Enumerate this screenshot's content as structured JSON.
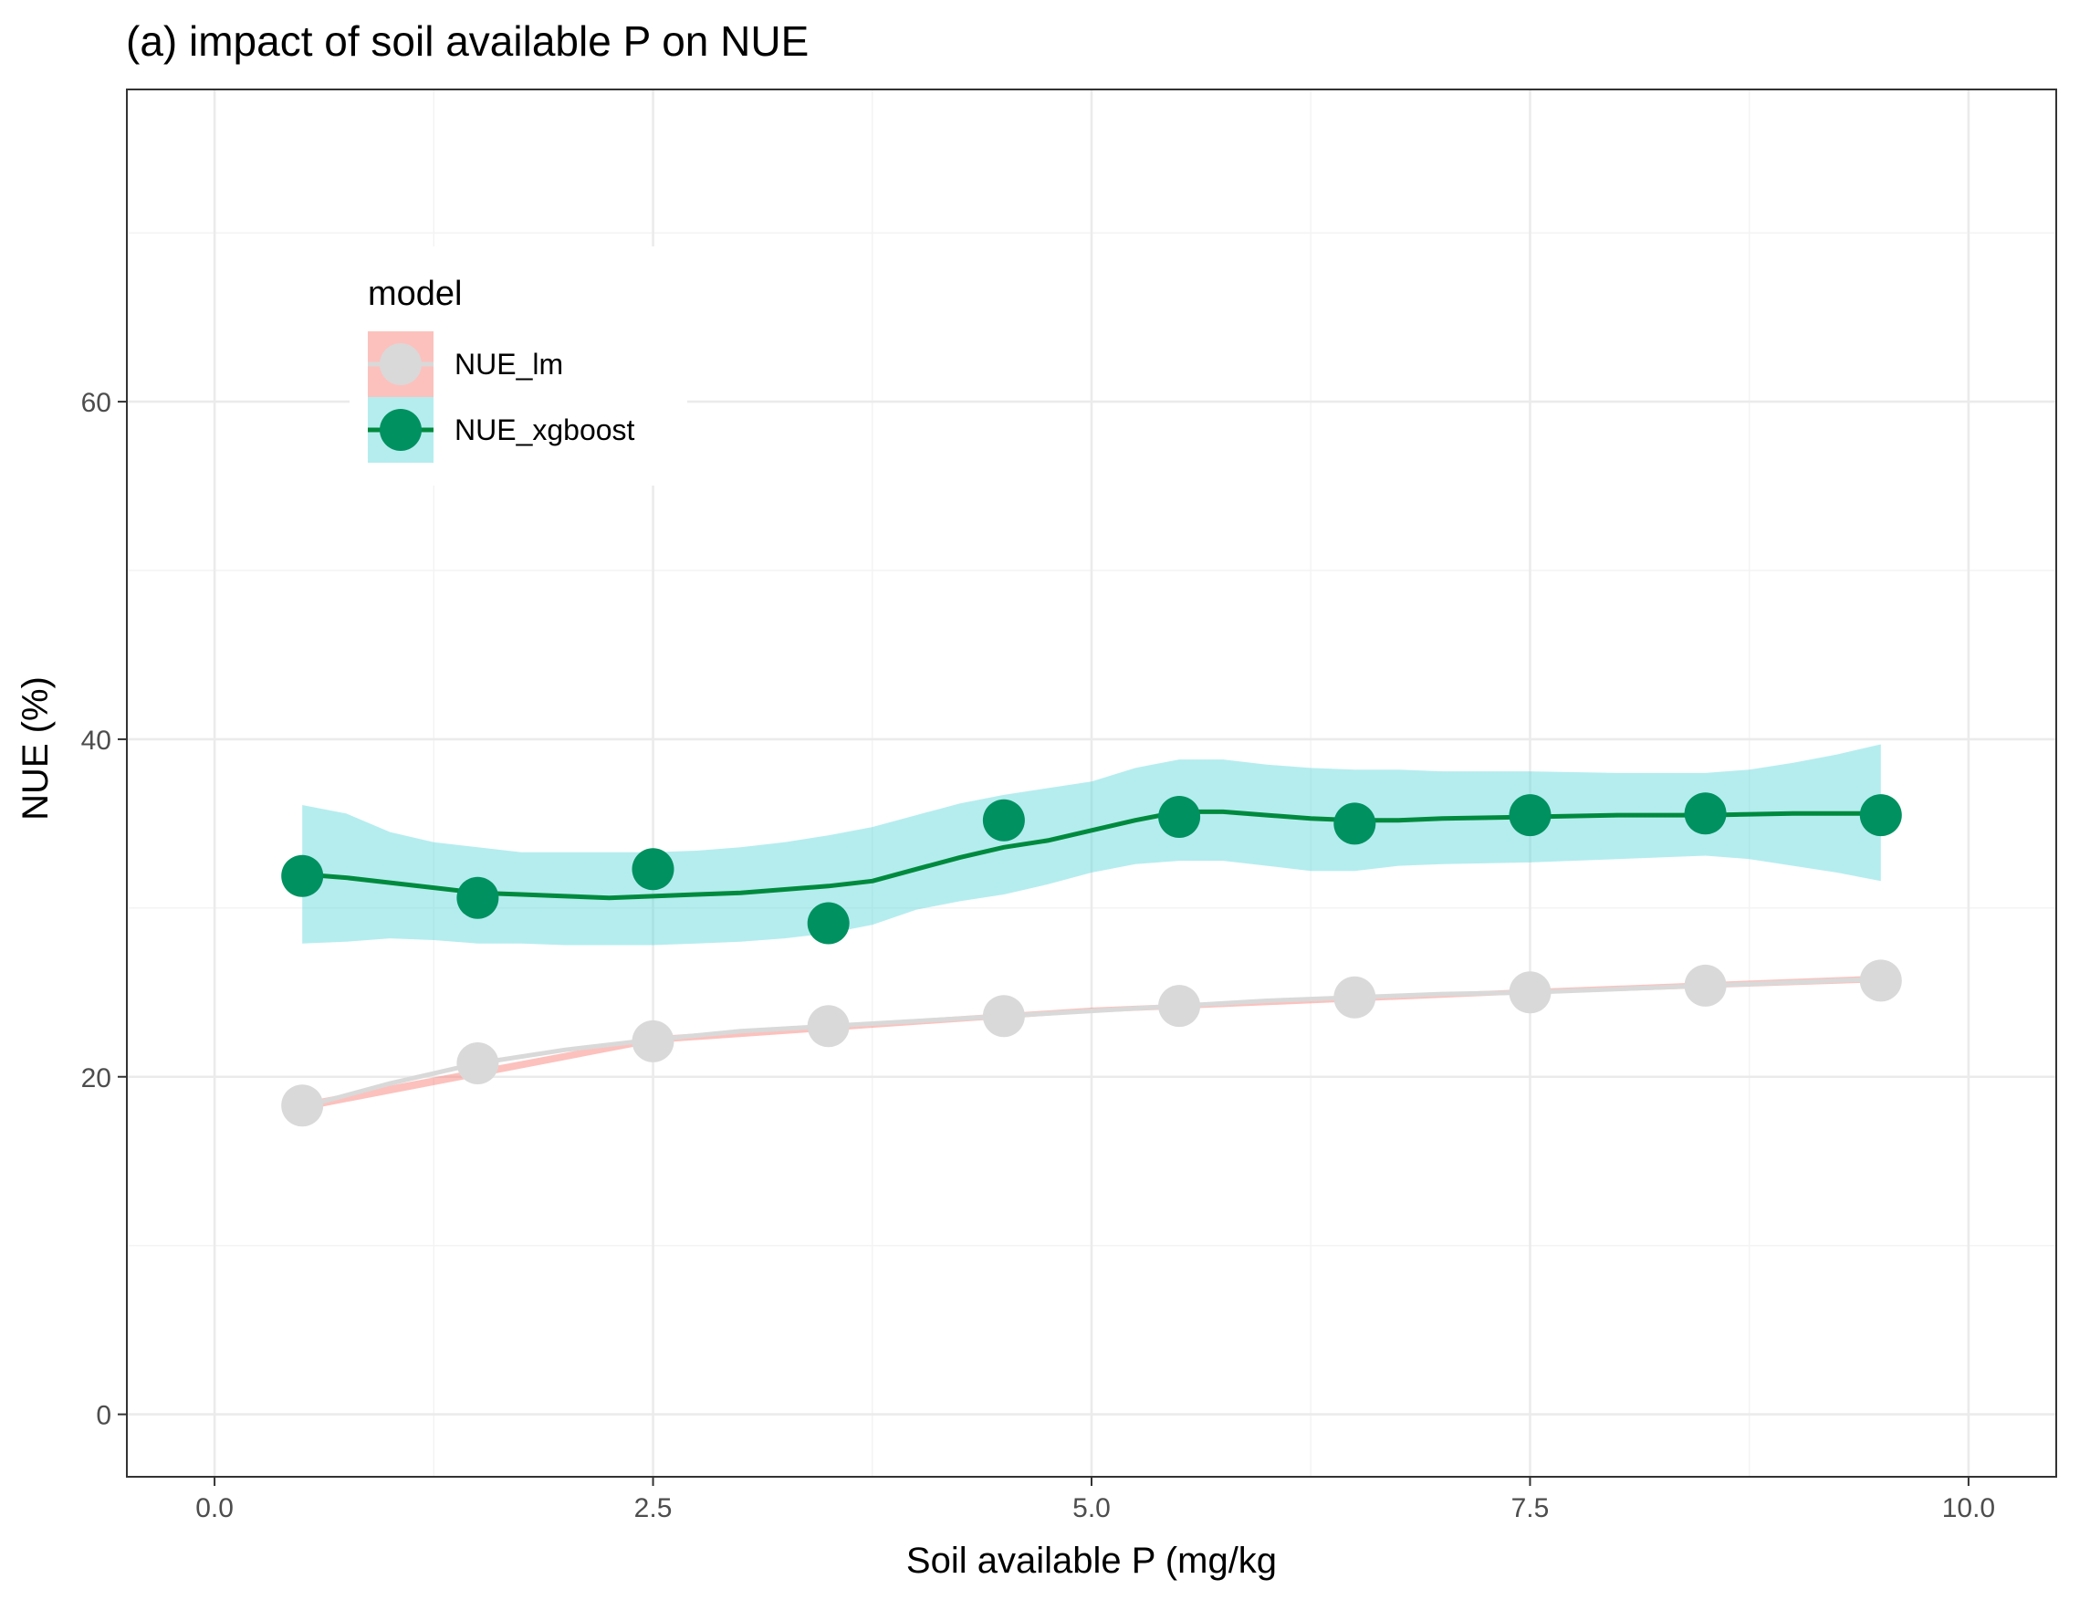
{
  "chart_data": {
    "type": "line",
    "title": "(a) impact of soil available P on NUE",
    "xlabel": "Soil available P (mg/kg",
    "ylabel": "NUE (%)",
    "xlim": [
      -0.5,
      10.5
    ],
    "ylim": [
      -3.7,
      78.5
    ],
    "x_ticks": [
      0.0,
      2.5,
      5.0,
      7.5,
      10.0
    ],
    "x_tick_labels": [
      "0.0",
      "2.5",
      "5.0",
      "7.5",
      "10.0"
    ],
    "y_ticks": [
      0,
      20,
      40,
      60
    ],
    "y_tick_labels": [
      "0",
      "20",
      "40",
      "60"
    ],
    "x_minor": [
      1.25,
      3.75,
      6.25,
      8.75
    ],
    "y_minor": [
      10,
      30,
      50,
      70
    ],
    "grid": true,
    "legend": {
      "title": "model",
      "position": "top-left",
      "entries": [
        "NUE_lm",
        "NUE_xgboost"
      ]
    },
    "x": [
      0.5,
      1.5,
      2.5,
      3.5,
      4.5,
      5.5,
      6.5,
      7.5,
      8.5,
      9.5
    ],
    "series": [
      {
        "name": "NUE_lm",
        "point_color": "#d9d9d9",
        "line_color": "#d9d9d9",
        "ribbon_color": "#f8766d",
        "values": [
          18.3,
          20.8,
          22.1,
          23.0,
          23.6,
          24.2,
          24.7,
          25.0,
          25.4,
          25.7
        ],
        "smooth": [
          [
            0.5,
            18.2
          ],
          [
            1.0,
            19.6
          ],
          [
            1.5,
            20.8
          ],
          [
            2.0,
            21.6
          ],
          [
            2.5,
            22.2
          ],
          [
            3.0,
            22.7
          ],
          [
            3.5,
            23.0
          ],
          [
            4.0,
            23.3
          ],
          [
            4.5,
            23.6
          ],
          [
            5.0,
            23.9
          ],
          [
            5.5,
            24.2
          ],
          [
            6.0,
            24.5
          ],
          [
            6.5,
            24.7
          ],
          [
            7.0,
            24.9
          ],
          [
            7.5,
            25.0
          ],
          [
            8.0,
            25.2
          ],
          [
            8.5,
            25.4
          ],
          [
            9.0,
            25.6
          ],
          [
            9.5,
            25.8
          ]
        ],
        "ribbon": [
          [
            0.5,
            18.0,
            18.5
          ],
          [
            2.5,
            22.0,
            22.4
          ],
          [
            5.0,
            23.8,
            24.1
          ],
          [
            7.5,
            24.9,
            25.2
          ],
          [
            9.5,
            25.6,
            26.0
          ]
        ]
      },
      {
        "name": "NUE_xgboost",
        "point_color": "#009160",
        "line_color": "#008a3e",
        "ribbon_color": "#5ad8dc",
        "values": [
          31.9,
          30.6,
          32.3,
          29.1,
          35.2,
          35.4,
          35.0,
          35.5,
          35.6,
          35.5
        ],
        "smooth": [
          [
            0.5,
            32.0
          ],
          [
            0.75,
            31.8
          ],
          [
            1.0,
            31.5
          ],
          [
            1.25,
            31.2
          ],
          [
            1.5,
            30.9
          ],
          [
            1.75,
            30.8
          ],
          [
            2.0,
            30.7
          ],
          [
            2.25,
            30.6
          ],
          [
            2.5,
            30.7
          ],
          [
            2.75,
            30.8
          ],
          [
            3.0,
            30.9
          ],
          [
            3.25,
            31.1
          ],
          [
            3.5,
            31.3
          ],
          [
            3.75,
            31.6
          ],
          [
            4.0,
            32.3
          ],
          [
            4.25,
            33.0
          ],
          [
            4.5,
            33.6
          ],
          [
            4.75,
            34.0
          ],
          [
            5.0,
            34.6
          ],
          [
            5.25,
            35.2
          ],
          [
            5.5,
            35.7
          ],
          [
            5.75,
            35.7
          ],
          [
            6.0,
            35.5
          ],
          [
            6.25,
            35.3
          ],
          [
            6.5,
            35.2
          ],
          [
            6.75,
            35.2
          ],
          [
            7.0,
            35.3
          ],
          [
            7.5,
            35.4
          ],
          [
            8.0,
            35.5
          ],
          [
            8.5,
            35.5
          ],
          [
            9.0,
            35.6
          ],
          [
            9.5,
            35.6
          ]
        ],
        "ribbon": [
          [
            0.5,
            27.9,
            36.1
          ],
          [
            0.75,
            28.0,
            35.6
          ],
          [
            1.0,
            28.2,
            34.5
          ],
          [
            1.25,
            28.1,
            33.9
          ],
          [
            1.5,
            27.9,
            33.6
          ],
          [
            1.75,
            27.9,
            33.3
          ],
          [
            2.0,
            27.8,
            33.3
          ],
          [
            2.25,
            27.8,
            33.3
          ],
          [
            2.5,
            27.8,
            33.3
          ],
          [
            2.75,
            27.9,
            33.4
          ],
          [
            3.0,
            28.0,
            33.6
          ],
          [
            3.25,
            28.2,
            33.9
          ],
          [
            3.5,
            28.5,
            34.3
          ],
          [
            3.75,
            29.0,
            34.8
          ],
          [
            4.0,
            29.9,
            35.5
          ],
          [
            4.25,
            30.4,
            36.2
          ],
          [
            4.5,
            30.8,
            36.7
          ],
          [
            4.75,
            31.4,
            37.1
          ],
          [
            5.0,
            32.1,
            37.5
          ],
          [
            5.25,
            32.6,
            38.3
          ],
          [
            5.5,
            32.8,
            38.8
          ],
          [
            5.75,
            32.8,
            38.8
          ],
          [
            6.0,
            32.5,
            38.5
          ],
          [
            6.25,
            32.2,
            38.3
          ],
          [
            6.5,
            32.2,
            38.2
          ],
          [
            6.75,
            32.5,
            38.2
          ],
          [
            7.0,
            32.6,
            38.1
          ],
          [
            7.5,
            32.7,
            38.1
          ],
          [
            8.0,
            32.9,
            38.0
          ],
          [
            8.5,
            33.1,
            38.0
          ],
          [
            8.75,
            32.9,
            38.2
          ],
          [
            9.0,
            32.5,
            38.6
          ],
          [
            9.25,
            32.1,
            39.1
          ],
          [
            9.5,
            31.6,
            39.7
          ]
        ]
      }
    ]
  }
}
